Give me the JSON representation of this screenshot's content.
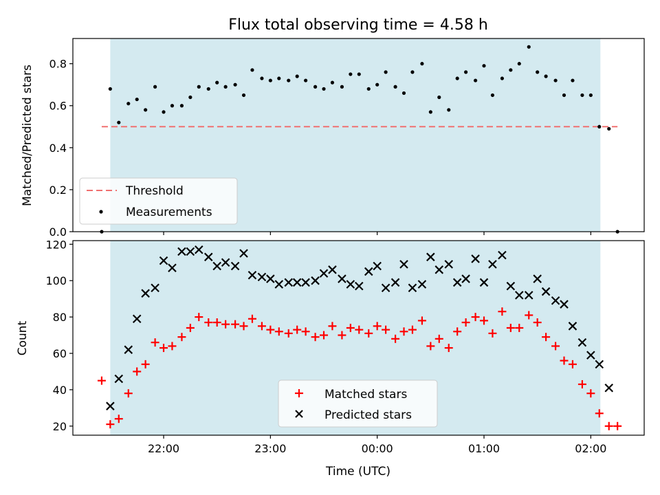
{
  "chart_data": [
    {
      "type": "scatter",
      "title": "Flux total observing time = 4.58 h",
      "xlabel": "",
      "ylabel": "Matched/Predicted stars",
      "x_unit": "hours (UTC, relative to 00:00)",
      "xlim": [
        -2.85,
        2.5
      ],
      "ylim": [
        0.0,
        0.92
      ],
      "yticks": [
        0.0,
        0.2,
        0.4,
        0.6,
        0.8
      ],
      "xticks": [
        -2,
        -1,
        0,
        1,
        2
      ],
      "observing_window": [
        -2.5,
        2.09
      ],
      "shade_color": "#d4eaf0",
      "threshold": {
        "name": "Threshold",
        "value": 0.5,
        "x_range": [
          -2.58,
          2.25
        ],
        "color": "#f07070"
      },
      "series": [
        {
          "name": "Measurements",
          "color": "#000000",
          "x": [
            -2.58,
            -2.5,
            -2.42,
            -2.33,
            -2.25,
            -2.17,
            -2.08,
            -2.0,
            -1.92,
            -1.83,
            -1.75,
            -1.67,
            -1.58,
            -1.5,
            -1.42,
            -1.33,
            -1.25,
            -1.17,
            -1.08,
            -1.0,
            -0.92,
            -0.83,
            -0.75,
            -0.67,
            -0.58,
            -0.5,
            -0.42,
            -0.33,
            -0.25,
            -0.17,
            -0.08,
            0.0,
            0.08,
            0.17,
            0.25,
            0.33,
            0.42,
            0.5,
            0.58,
            0.67,
            0.75,
            0.83,
            0.92,
            1.0,
            1.08,
            1.17,
            1.25,
            1.33,
            1.42,
            1.5,
            1.58,
            1.67,
            1.75,
            1.83,
            1.92,
            2.0,
            2.08,
            2.17,
            2.25
          ],
          "y": [
            0.0,
            0.68,
            0.52,
            0.61,
            0.63,
            0.58,
            0.69,
            0.57,
            0.6,
            0.6,
            0.64,
            0.69,
            0.68,
            0.71,
            0.69,
            0.7,
            0.65,
            0.77,
            0.73,
            0.72,
            0.73,
            0.72,
            0.74,
            0.72,
            0.69,
            0.68,
            0.71,
            0.69,
            0.75,
            0.75,
            0.68,
            0.7,
            0.76,
            0.69,
            0.66,
            0.76,
            0.8,
            0.57,
            0.64,
            0.58,
            0.73,
            0.76,
            0.72,
            0.79,
            0.65,
            0.73,
            0.77,
            0.8,
            0.88,
            0.76,
            0.74,
            0.72,
            0.65,
            0.72,
            0.65,
            0.65,
            0.5,
            0.49,
            0.0
          ]
        }
      ],
      "legend": {
        "placement": "lower-left",
        "entries": [
          "Threshold",
          "Measurements"
        ]
      }
    },
    {
      "type": "scatter",
      "title": "",
      "xlabel": "Time (UTC)",
      "ylabel": "Count",
      "x_unit": "hours (UTC, relative to 00:00)",
      "xlim": [
        -2.85,
        2.5
      ],
      "ylim": [
        15,
        122
      ],
      "yticks": [
        20,
        40,
        60,
        80,
        100,
        120
      ],
      "xticks": [
        -2,
        -1,
        0,
        1,
        2
      ],
      "xtick_labels": [
        "22:00",
        "23:00",
        "00:00",
        "01:00",
        "02:00"
      ],
      "observing_window": [
        -2.5,
        2.09
      ],
      "shade_color": "#d4eaf0",
      "series": [
        {
          "name": "Matched stars",
          "marker": "plus",
          "color": "#ff0000",
          "x": [
            -2.58,
            -2.5,
            -2.42,
            -2.33,
            -2.25,
            -2.17,
            -2.08,
            -2.0,
            -1.92,
            -1.83,
            -1.75,
            -1.67,
            -1.58,
            -1.5,
            -1.42,
            -1.33,
            -1.25,
            -1.17,
            -1.08,
            -1.0,
            -0.92,
            -0.83,
            -0.75,
            -0.67,
            -0.58,
            -0.5,
            -0.42,
            -0.33,
            -0.25,
            -0.17,
            -0.08,
            0.0,
            0.08,
            0.17,
            0.25,
            0.33,
            0.42,
            0.5,
            0.58,
            0.67,
            0.75,
            0.83,
            0.92,
            1.0,
            1.08,
            1.17,
            1.25,
            1.33,
            1.42,
            1.5,
            1.58,
            1.67,
            1.75,
            1.83,
            1.92,
            2.0,
            2.08,
            2.17,
            2.25
          ],
          "y": [
            45,
            21,
            24,
            38,
            50,
            54,
            66,
            63,
            64,
            69,
            74,
            80,
            77,
            77,
            76,
            76,
            75,
            79,
            75,
            73,
            72,
            71,
            73,
            72,
            69,
            70,
            75,
            70,
            74,
            73,
            71,
            75,
            73,
            68,
            72,
            73,
            78,
            64,
            68,
            63,
            72,
            77,
            80,
            78,
            71,
            83,
            74,
            74,
            81,
            77,
            69,
            64,
            56,
            54,
            43,
            38,
            27,
            20,
            20
          ]
        },
        {
          "name": "Predicted stars",
          "marker": "cross",
          "color": "#000000",
          "x": [
            -2.5,
            -2.42,
            -2.33,
            -2.25,
            -2.17,
            -2.08,
            -2.0,
            -1.92,
            -1.83,
            -1.75,
            -1.67,
            -1.58,
            -1.5,
            -1.42,
            -1.33,
            -1.25,
            -1.17,
            -1.08,
            -1.0,
            -0.92,
            -0.83,
            -0.75,
            -0.67,
            -0.58,
            -0.5,
            -0.42,
            -0.33,
            -0.25,
            -0.17,
            -0.08,
            0.0,
            0.08,
            0.17,
            0.25,
            0.33,
            0.42,
            0.5,
            0.58,
            0.67,
            0.75,
            0.83,
            0.92,
            1.0,
            1.08,
            1.17,
            1.25,
            1.33,
            1.42,
            1.5,
            1.58,
            1.67,
            1.75,
            1.83,
            1.92,
            2.0,
            2.08,
            2.17
          ],
          "y": [
            31,
            46,
            62,
            79,
            93,
            96,
            111,
            107,
            116,
            116,
            117,
            113,
            108,
            110,
            108,
            115,
            103,
            102,
            101,
            98,
            99,
            99,
            99,
            100,
            104,
            106,
            101,
            98,
            97,
            105,
            108,
            96,
            99,
            109,
            96,
            98,
            113,
            106,
            109,
            99,
            101,
            112,
            99,
            109,
            114,
            97,
            92,
            92,
            101,
            94,
            89,
            87,
            75,
            66,
            59,
            54,
            41
          ]
        }
      ],
      "legend": {
        "placement": "lower-center",
        "entries": [
          "Matched stars",
          "Predicted stars"
        ]
      }
    }
  ]
}
